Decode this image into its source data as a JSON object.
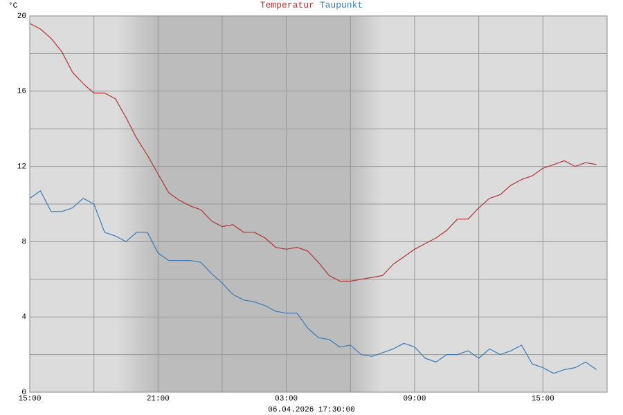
{
  "chart_data": {
    "type": "line",
    "unit": "°C",
    "footer": "06.04.2026 17:30:00",
    "x": [
      0,
      0.5,
      1,
      1.5,
      2,
      2.5,
      3,
      3.5,
      4,
      4.5,
      5,
      5.5,
      6,
      6.5,
      7,
      7.5,
      8,
      8.5,
      9,
      9.5,
      10,
      10.5,
      11,
      11.5,
      12,
      12.5,
      13,
      13.5,
      14,
      14.5,
      15,
      15.5,
      16,
      16.5,
      17,
      17.5,
      18,
      18.5,
      19,
      19.5,
      20,
      20.5,
      21,
      21.5,
      22,
      22.5,
      23,
      23.5,
      24,
      24.5,
      25,
      25.5,
      26,
      26.5
    ],
    "series": [
      {
        "name": "Temperatur",
        "color": "#b03434",
        "values": [
          19.6,
          19.3,
          18.8,
          18.1,
          17.0,
          16.4,
          15.9,
          15.9,
          15.6,
          14.6,
          13.5,
          12.6,
          11.6,
          10.6,
          10.2,
          9.9,
          9.7,
          9.1,
          8.8,
          8.9,
          8.5,
          8.5,
          8.2,
          7.7,
          7.6,
          7.7,
          7.5,
          6.9,
          6.2,
          5.9,
          5.9,
          6.0,
          6.1,
          6.2,
          6.8,
          7.2,
          7.6,
          7.9,
          8.2,
          8.6,
          9.2,
          9.2,
          9.8,
          10.3,
          10.5,
          11.0,
          11.3,
          11.5,
          11.9,
          12.1,
          12.3,
          12.0,
          12.2,
          12.1
        ]
      },
      {
        "name": "Taupunkt",
        "color": "#3a7ab8",
        "values": [
          10.3,
          10.7,
          9.6,
          9.6,
          9.8,
          10.3,
          10.0,
          8.5,
          8.3,
          8.0,
          8.5,
          8.5,
          7.4,
          7.0,
          7.0,
          7.0,
          6.9,
          6.3,
          5.8,
          5.2,
          4.9,
          4.8,
          4.6,
          4.3,
          4.2,
          4.2,
          3.4,
          2.9,
          2.8,
          2.4,
          2.5,
          2.0,
          1.9,
          2.1,
          2.3,
          2.6,
          2.4,
          1.8,
          1.6,
          2.0,
          2.0,
          2.2,
          1.8,
          2.3,
          2.0,
          2.2,
          2.5,
          1.5,
          1.3,
          1.0,
          1.2,
          1.3,
          1.6,
          1.2
        ]
      }
    ],
    "xlim": [
      0,
      27
    ],
    "xticks": [
      {
        "value": 0,
        "label": "15:00"
      },
      {
        "value": 6,
        "label": "21:00"
      },
      {
        "value": 12,
        "label": "03:00"
      },
      {
        "value": 18,
        "label": "09:00"
      },
      {
        "value": 24,
        "label": "15:00"
      }
    ],
    "xminor": [
      3,
      9,
      15,
      21,
      27
    ],
    "ylim": [
      0,
      20
    ],
    "yticks": [
      0,
      4,
      8,
      12,
      16,
      20
    ],
    "yminor": [
      2,
      6,
      10,
      14,
      18
    ],
    "grid": true
  }
}
